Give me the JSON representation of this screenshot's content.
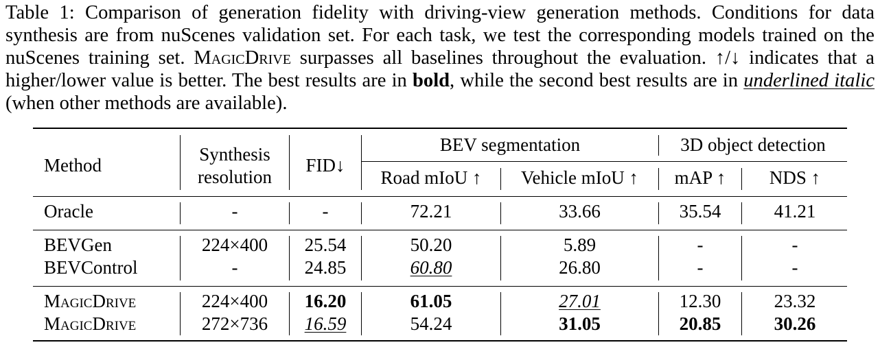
{
  "caption": {
    "table_label": "Table 1:",
    "text_1": "Comparison of generation fidelity with driving-view generation methods. Conditions for data synthesis are from nuScenes validation set. For each task, we test the corresponding models trained on the nuScenes training set.",
    "method_name": "MagicDrive",
    "text_2": "surpasses all baselines throughout the evaluation. ↑/↓ indicates that a higher/lower value is better. The best results are in",
    "bold_word": "bold",
    "text_3": ", while the second best results are in",
    "underlined_italic_word": "underlined italic",
    "text_4": "(when other methods are available)."
  },
  "table": {
    "headers": {
      "method": "Method",
      "synthesis_line1": "Synthesis",
      "synthesis_line2": "resolution",
      "fid": "FID↓",
      "bev_group": "BEV segmentation",
      "det_group": "3D object detection",
      "road": "Road mIoU ↑",
      "vehicle": "Vehicle mIoU ↑",
      "map": "mAP ↑",
      "nds": "NDS ↑"
    },
    "rows": [
      {
        "method": "Oracle",
        "resolution": "-",
        "fid": "-",
        "road": "72.21",
        "vehicle": "33.66",
        "map": "35.54",
        "nds": "41.21"
      },
      {
        "method": "BEVGen",
        "resolution": "224×400",
        "fid": "25.54",
        "road": "50.20",
        "vehicle": "5.89",
        "map": "-",
        "nds": "-"
      },
      {
        "method": "BEVControl",
        "resolution": "-",
        "fid": "24.85",
        "road": "60.80",
        "vehicle": "26.80",
        "map": "-",
        "nds": "-"
      },
      {
        "method": "MagicDrive",
        "resolution": "224×400",
        "fid": "16.20",
        "road": "61.05",
        "vehicle": "27.01",
        "map": "12.30",
        "nds": "23.32"
      },
      {
        "method": "MagicDrive",
        "resolution": "272×736",
        "fid": "16.59",
        "road": "54.24",
        "vehicle": "31.05",
        "map": "20.85",
        "nds": "30.26"
      }
    ]
  }
}
